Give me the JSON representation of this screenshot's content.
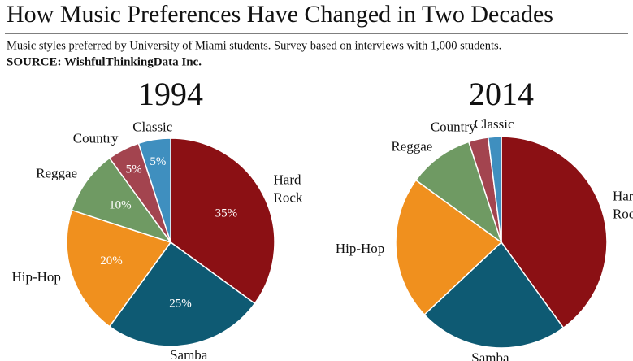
{
  "title": "How Music Preferences Have Changed in Two Decades",
  "subtitle": "Music styles preferred by University of Miami students. Survey based on interviews with 1,000 students.",
  "source": "SOURCE: WishfulThinkingData Inc.",
  "chart_data": [
    {
      "type": "pie",
      "title": "1994",
      "categories": [
        "Hard Rock",
        "Samba",
        "Hip-Hop",
        "Reggae",
        "Country",
        "Classic"
      ],
      "values": [
        35,
        25,
        20,
        10,
        5,
        5
      ],
      "value_labels": [
        "35%",
        "25%",
        "20%",
        "10%",
        "5%",
        "5%"
      ],
      "colors": [
        "#8b1014",
        "#0e5a73",
        "#f0901e",
        "#6f9a63",
        "#a3444f",
        "#3f8fbf"
      ]
    },
    {
      "type": "pie",
      "title": "2014",
      "categories": [
        "Hard Rock",
        "Samba",
        "Hip-Hop",
        "Reggae",
        "Country",
        "Classic"
      ],
      "values": [
        40,
        23,
        22,
        10,
        3,
        2
      ],
      "colors": [
        "#8b1014",
        "#0e5a73",
        "#f0901e",
        "#6f9a63",
        "#a3444f",
        "#3f8fbf"
      ]
    }
  ]
}
